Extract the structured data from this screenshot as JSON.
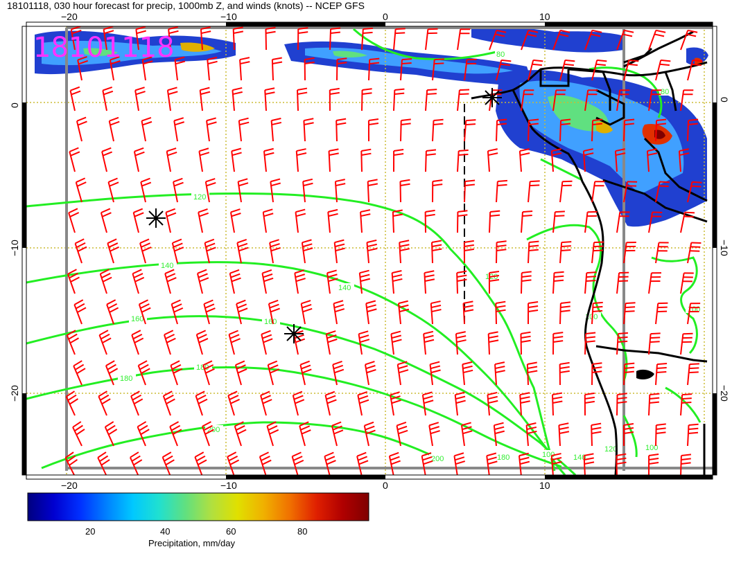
{
  "title": "18101118, 030 hour forecast for precip, 1000mb Z, and winds (knots) -- NCEP GFS",
  "date_stamp": "18101118",
  "axes": {
    "lon_labels": [
      "−20",
      "−10",
      "0",
      "10"
    ],
    "lat_labels_left": [
      "0",
      "−10",
      "−20"
    ],
    "lat_labels_right": [
      "0",
      "−10",
      "−20"
    ]
  },
  "contour_labels": [
    "120",
    "140",
    "140",
    "160",
    "160",
    "180",
    "180",
    "200",
    "200",
    "180",
    "140",
    "120",
    "100",
    "100",
    "80",
    "100",
    "80",
    "100",
    "120"
  ],
  "colorbar": {
    "title": "Precipitation, mm/day",
    "ticks": [
      "20",
      "40",
      "60",
      "80"
    ],
    "colors": [
      "#00007f",
      "#0000d0",
      "#0030ff",
      "#0080ff",
      "#00c8ff",
      "#20e0d0",
      "#60e080",
      "#b0e040",
      "#e0e000",
      "#f0b000",
      "#f07000",
      "#e02000",
      "#b00000",
      "#7f0000"
    ]
  },
  "colors": {
    "barbs": "#ff0000",
    "contours": "#22ee22",
    "grid": "#ccbb33",
    "frame": "#888888",
    "coast": "#000000"
  },
  "markers": [
    "low-center",
    "low-center",
    "low-center"
  ]
}
